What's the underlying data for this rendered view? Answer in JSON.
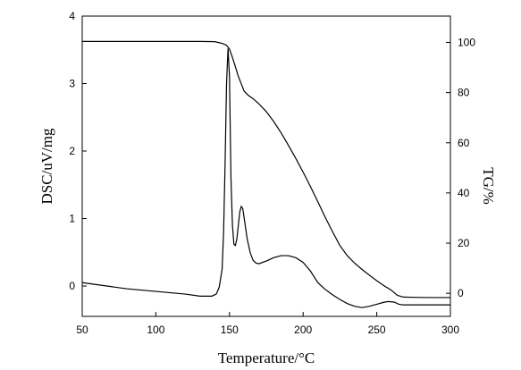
{
  "chart_data": {
    "type": "line",
    "xlabel": "Temperature/°C",
    "ylabel_left": "DSC/uV/mg",
    "ylabel_right": "TG/%",
    "xlim": [
      50,
      300
    ],
    "ylim_left": [
      -0.45,
      4
    ],
    "ylim_right": [
      -9.2,
      110.5
    ],
    "x_ticks": [
      50,
      100,
      150,
      200,
      250,
      300
    ],
    "y_ticks_left": [
      0,
      1,
      2,
      3,
      4
    ],
    "y_ticks_right": [
      0,
      20,
      40,
      60,
      80,
      100
    ],
    "grid": false,
    "colors": {
      "line": "#000000",
      "axis": "#000000",
      "background": "#ffffff"
    },
    "series": [
      {
        "axis": "right",
        "points": [
          [
            50,
            100.4
          ],
          [
            100,
            100.4
          ],
          [
            130,
            100.4
          ],
          [
            140,
            100.3
          ],
          [
            145,
            99.6
          ],
          [
            148,
            98.9
          ],
          [
            150,
            97.3
          ],
          [
            152,
            94.0
          ],
          [
            154,
            90.3
          ],
          [
            156,
            86.5
          ],
          [
            158,
            83.5
          ],
          [
            160,
            80.5
          ],
          [
            163,
            78.8
          ],
          [
            166,
            77.6
          ],
          [
            170,
            75.5
          ],
          [
            175,
            72.4
          ],
          [
            180,
            68.5
          ],
          [
            185,
            64.0
          ],
          [
            190,
            59.0
          ],
          [
            195,
            53.8
          ],
          [
            200,
            48.3
          ],
          [
            205,
            42.5
          ],
          [
            210,
            36.5
          ],
          [
            215,
            30.3
          ],
          [
            220,
            24.5
          ],
          [
            225,
            19.0
          ],
          [
            230,
            15.0
          ],
          [
            235,
            12.0
          ],
          [
            240,
            9.5
          ],
          [
            245,
            7.2
          ],
          [
            250,
            5.0
          ],
          [
            255,
            3.0
          ],
          [
            260,
            1.2
          ],
          [
            264,
            -0.8
          ],
          [
            268,
            -1.5
          ],
          [
            275,
            -1.6
          ],
          [
            285,
            -1.7
          ],
          [
            300,
            -1.7
          ]
        ]
      },
      {
        "axis": "left",
        "points": [
          [
            50,
            0.05
          ],
          [
            60,
            0.02
          ],
          [
            70,
            -0.01
          ],
          [
            80,
            -0.04
          ],
          [
            90,
            -0.06
          ],
          [
            100,
            -0.08
          ],
          [
            110,
            -0.1
          ],
          [
            120,
            -0.12
          ],
          [
            130,
            -0.15
          ],
          [
            138,
            -0.15
          ],
          [
            141,
            -0.12
          ],
          [
            143,
            -0.02
          ],
          [
            145,
            0.25
          ],
          [
            146,
            0.8
          ],
          [
            147,
            1.8
          ],
          [
            148,
            3.0
          ],
          [
            149,
            3.52
          ],
          [
            150,
            3.1
          ],
          [
            151,
            1.6
          ],
          [
            152,
            0.9
          ],
          [
            153,
            0.62
          ],
          [
            154,
            0.6
          ],
          [
            155,
            0.7
          ],
          [
            156,
            0.9
          ],
          [
            157,
            1.1
          ],
          [
            158,
            1.18
          ],
          [
            159,
            1.15
          ],
          [
            160,
            1.0
          ],
          [
            162,
            0.7
          ],
          [
            164,
            0.5
          ],
          [
            166,
            0.38
          ],
          [
            168,
            0.34
          ],
          [
            170,
            0.33
          ],
          [
            175,
            0.37
          ],
          [
            180,
            0.42
          ],
          [
            185,
            0.45
          ],
          [
            190,
            0.45
          ],
          [
            195,
            0.42
          ],
          [
            200,
            0.35
          ],
          [
            205,
            0.22
          ],
          [
            210,
            0.05
          ],
          [
            215,
            -0.05
          ],
          [
            220,
            -0.13
          ],
          [
            225,
            -0.2
          ],
          [
            230,
            -0.26
          ],
          [
            235,
            -0.3
          ],
          [
            240,
            -0.32
          ],
          [
            245,
            -0.3
          ],
          [
            250,
            -0.27
          ],
          [
            255,
            -0.24
          ],
          [
            258,
            -0.23
          ],
          [
            262,
            -0.24
          ],
          [
            265,
            -0.27
          ],
          [
            268,
            -0.28
          ],
          [
            275,
            -0.28
          ],
          [
            285,
            -0.28
          ],
          [
            300,
            -0.28
          ]
        ]
      }
    ]
  }
}
